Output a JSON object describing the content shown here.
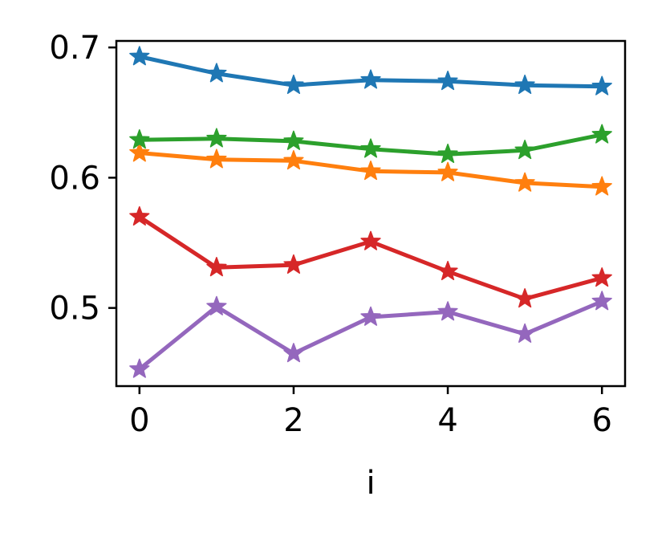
{
  "chart_data": {
    "type": "line",
    "title": "",
    "xlabel": "i",
    "ylabel": "",
    "xlim": [
      -0.3,
      6.3
    ],
    "ylim": [
      0.44,
      0.705
    ],
    "xticks": [
      0,
      2,
      4,
      6
    ],
    "yticks": [
      0.5,
      0.6,
      0.7
    ],
    "xtick_labels": [
      "0",
      "2",
      "4",
      "6"
    ],
    "ytick_labels": [
      "0.5",
      "0.6",
      "0.7"
    ],
    "grid": false,
    "legend": "none",
    "marker": "star",
    "x": [
      0,
      1,
      2,
      3,
      4,
      5,
      6
    ],
    "series": [
      {
        "color": "#1f77b4",
        "values": [
          0.693,
          0.68,
          0.671,
          0.675,
          0.674,
          0.671,
          0.67
        ]
      },
      {
        "color": "#ff7f0e",
        "values": [
          0.619,
          0.614,
          0.613,
          0.605,
          0.604,
          0.596,
          0.593
        ]
      },
      {
        "color": "#2ca02c",
        "values": [
          0.629,
          0.63,
          0.628,
          0.622,
          0.618,
          0.621,
          0.633
        ]
      },
      {
        "color": "#d62728",
        "values": [
          0.57,
          0.531,
          0.533,
          0.551,
          0.528,
          0.507,
          0.523
        ]
      },
      {
        "color": "#9467bd",
        "values": [
          0.453,
          0.501,
          0.465,
          0.493,
          0.497,
          0.48,
          0.505
        ]
      }
    ]
  }
}
